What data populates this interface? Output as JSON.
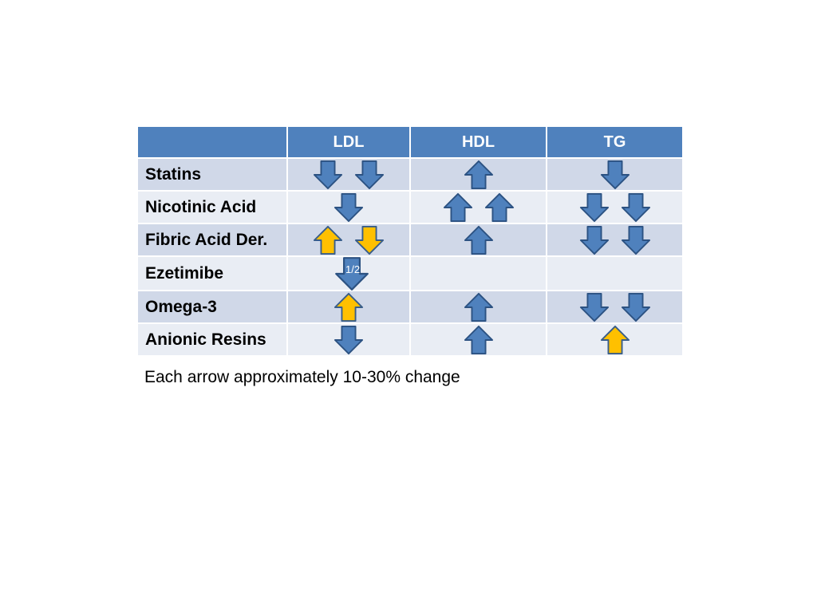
{
  "table": {
    "headers": [
      "",
      "LDL",
      "HDL",
      "TG"
    ],
    "rows": [
      {
        "drug": "Statins",
        "ldl": [
          {
            "dir": "down",
            "color": "blue"
          },
          {
            "dir": "down",
            "color": "blue"
          }
        ],
        "hdl": [
          {
            "dir": "up",
            "color": "blue"
          }
        ],
        "tg": [
          {
            "dir": "down",
            "color": "blue"
          }
        ]
      },
      {
        "drug": "Nicotinic Acid",
        "ldl": [
          {
            "dir": "down",
            "color": "blue"
          }
        ],
        "hdl": [
          {
            "dir": "up",
            "color": "blue"
          },
          {
            "dir": "up",
            "color": "blue"
          }
        ],
        "tg": [
          {
            "dir": "down",
            "color": "blue"
          },
          {
            "dir": "down",
            "color": "blue"
          }
        ]
      },
      {
        "drug": "Fibric Acid Der.",
        "ldl": [
          {
            "dir": "up",
            "color": "yellow"
          },
          {
            "dir": "down",
            "color": "yellow"
          }
        ],
        "hdl": [
          {
            "dir": "up",
            "color": "blue"
          }
        ],
        "tg": [
          {
            "dir": "down",
            "color": "blue"
          },
          {
            "dir": "down",
            "color": "blue"
          }
        ]
      },
      {
        "drug": "Ezetimibe",
        "ldl": [
          {
            "dir": "down",
            "color": "blue",
            "label": "1/2"
          }
        ],
        "hdl": [],
        "tg": []
      },
      {
        "drug": "Omega-3",
        "ldl": [
          {
            "dir": "up",
            "color": "yellow"
          }
        ],
        "hdl": [
          {
            "dir": "up",
            "color": "blue"
          }
        ],
        "tg": [
          {
            "dir": "down",
            "color": "blue"
          },
          {
            "dir": "down",
            "color": "blue"
          }
        ]
      },
      {
        "drug": "Anionic Resins",
        "ldl": [
          {
            "dir": "down",
            "color": "blue"
          }
        ],
        "hdl": [
          {
            "dir": "up",
            "color": "blue"
          }
        ],
        "tg": [
          {
            "dir": "up",
            "color": "yellow"
          }
        ]
      }
    ]
  },
  "footnote": "Each arrow approximately 10-30% change",
  "colors": {
    "header_bg": "#4f81bd",
    "row_odd_bg": "#d0d8e8",
    "row_even_bg": "#e9edf4",
    "arrow_blue_fill": "#4f81bd",
    "arrow_blue_stroke": "#2c5282",
    "arrow_yellow_fill": "#ffc000",
    "arrow_yellow_stroke": "#385d8a"
  }
}
